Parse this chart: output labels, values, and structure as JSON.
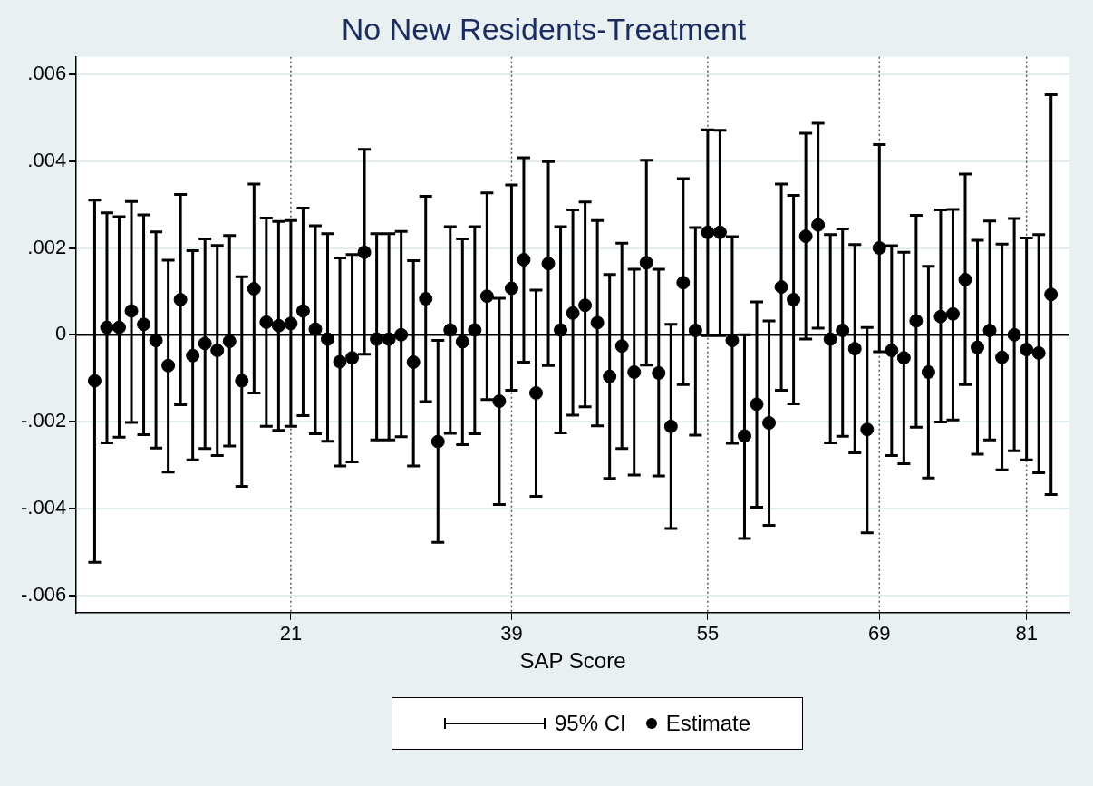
{
  "chart_data": {
    "type": "scatter",
    "title": "No New Residents-Treatment",
    "xlabel": "SAP Score",
    "x": [
      5,
      6,
      7,
      8,
      9,
      10,
      11,
      12,
      13,
      14,
      15,
      16,
      17,
      18,
      19,
      20,
      21,
      22,
      23,
      24,
      25,
      26,
      27,
      28,
      29,
      30,
      31,
      32,
      33,
      34,
      35,
      36,
      37,
      38,
      39,
      40,
      41,
      42,
      43,
      44,
      45,
      46,
      47,
      48,
      49,
      50,
      51,
      52,
      53,
      54,
      55,
      56,
      57,
      58,
      59,
      60,
      61,
      62,
      63,
      64,
      65,
      66,
      67,
      68,
      69,
      70,
      71,
      72,
      73,
      74,
      75,
      76,
      77,
      78,
      79,
      80,
      81,
      82,
      83
    ],
    "series": [
      {
        "name": "Estimate",
        "color": "#000000",
        "marker": "circle",
        "values": [
          -0.00106,
          0.00017,
          0.00017,
          0.00055,
          0.00024,
          -0.00013,
          -0.00071,
          0.00081,
          -0.00048,
          -0.0002,
          -0.00036,
          -0.00015,
          -0.00106,
          0.00106,
          0.00029,
          0.00021,
          0.00026,
          0.00055,
          0.00013,
          -0.0001,
          -0.00062,
          -0.00053,
          0.0019,
          -0.0001,
          -0.0001,
          0,
          -0.00063,
          0.00083,
          -0.00246,
          0.00011,
          -0.00016,
          0.00011,
          0.00089,
          -0.00153,
          0.00107,
          0.00173,
          -0.00134,
          0.00164,
          0.00011,
          0.0005,
          0.00068,
          0.00028,
          -0.00096,
          -0.00026,
          -0.00086,
          0.00166,
          -0.00088,
          -0.00211,
          0.0012,
          0.0001,
          0.00236,
          0.00236,
          -0.00013,
          -0.00233,
          -0.0016,
          -0.00203,
          0.0011,
          0.00081,
          0.00227,
          0.00253,
          -0.0001,
          0.0001,
          -0.00032,
          -0.00218,
          0.002,
          -0.00036,
          -0.00053,
          0.00032,
          -0.00086,
          0.00042,
          0.00048,
          0.00127,
          -0.00029,
          0.0001,
          -0.00052,
          0,
          -0.00034,
          -0.00042,
          0.00093
        ],
        "errors": [
          [
            -0.00524,
            0.0031
          ],
          [
            -0.00249,
            0.00281
          ],
          [
            -0.00236,
            0.00272
          ],
          [
            -0.00202,
            0.00307
          ],
          [
            -0.0023,
            0.00276
          ],
          [
            -0.00261,
            0.00237
          ],
          [
            -0.00316,
            0.00172
          ],
          [
            -0.00161,
            0.00323
          ],
          [
            -0.00288,
            0.00194
          ],
          [
            -0.00262,
            0.00221
          ],
          [
            -0.00278,
            0.00206
          ],
          [
            -0.00256,
            0.00229
          ],
          [
            -0.00349,
            0.00134
          ],
          [
            -0.00134,
            0.00347
          ],
          [
            -0.00211,
            0.00269
          ],
          [
            -0.0022,
            0.00261
          ],
          [
            -0.00211,
            0.00263
          ],
          [
            -0.00186,
            0.00292
          ],
          [
            -0.00228,
            0.00251
          ],
          [
            -0.00245,
            0.00233
          ],
          [
            -0.00302,
            0.00177
          ],
          [
            -0.00293,
            0.00185
          ],
          [
            -0.00045,
            0.00427
          ],
          [
            -0.00242,
            0.00233
          ],
          [
            -0.00242,
            0.00233
          ],
          [
            -0.00235,
            0.00238
          ],
          [
            -0.00302,
            0.00171
          ],
          [
            -0.00154,
            0.00319
          ],
          [
            -0.00478,
            -0.00013
          ],
          [
            -0.00227,
            0.00249
          ],
          [
            -0.00253,
            0.00221
          ],
          [
            -0.00228,
            0.00249
          ],
          [
            -0.00149,
            0.00327
          ],
          [
            -0.00391,
            0.00084
          ],
          [
            -0.00128,
            0.00345
          ],
          [
            -0.00063,
            0.00408
          ],
          [
            -0.00372,
            0.00103
          ],
          [
            -0.00071,
            0.00399
          ],
          [
            -0.00226,
            0.00249
          ],
          [
            -0.00185,
            0.00288
          ],
          [
            -0.00166,
            0.00306
          ],
          [
            -0.0021,
            0.00263
          ],
          [
            -0.00331,
            0.00139
          ],
          [
            -0.00262,
            0.00211
          ],
          [
            -0.00323,
            0.00151
          ],
          [
            -0.0007,
            0.00402
          ],
          [
            -0.00325,
            0.00151
          ],
          [
            -0.00446,
            0.00024
          ],
          [
            -0.00115,
            0.0036
          ],
          [
            -0.00231,
            0.00247
          ],
          [
            -2e-05,
            0.00472
          ],
          [
            -2e-05,
            0.00471
          ],
          [
            -0.0025,
            0.00226
          ],
          [
            -0.00469,
            0
          ],
          [
            -0.00397,
            0.00076
          ],
          [
            -0.00439,
            0.00032
          ],
          [
            -0.00128,
            0.00347
          ],
          [
            -0.00159,
            0.00321
          ],
          [
            -0.0001,
            0.00464
          ],
          [
            0.00015,
            0.00487
          ],
          [
            -0.00249,
            0.00231
          ],
          [
            -0.00234,
            0.00244
          ],
          [
            -0.00272,
            0.00208
          ],
          [
            -0.00456,
            0.00017
          ],
          [
            -0.00039,
            0.00438
          ],
          [
            -0.00278,
            0.00205
          ],
          [
            -0.00297,
            0.0019
          ],
          [
            -0.00213,
            0.00275
          ],
          [
            -0.0033,
            0.00158
          ],
          [
            -0.00201,
            0.00288
          ],
          [
            -0.00196,
            0.00289
          ],
          [
            -0.00115,
            0.0037
          ],
          [
            -0.00275,
            0.00218
          ],
          [
            -0.00242,
            0.00262
          ],
          [
            -0.00311,
            0.00209
          ],
          [
            -0.00267,
            0.00268
          ],
          [
            -0.00288,
            0.00223
          ],
          [
            -0.00318,
            0.00231
          ],
          [
            -0.00368,
            0.00553
          ]
        ]
      }
    ],
    "annotations": [
      "95% CI"
    ],
    "xlim": [
      3.5,
      84.5
    ],
    "xticks": [
      21,
      39,
      55,
      69,
      81
    ],
    "ylim": [
      -0.0064,
      0.0064
    ],
    "yticks": [
      {
        "value": -0.006,
        "label": "-.006"
      },
      {
        "value": -0.004,
        "label": "-.004"
      },
      {
        "value": -0.002,
        "label": "-.002"
      },
      0,
      {
        "value": 0.002,
        "label": ".002"
      },
      {
        "value": 0.004,
        "label": ".004"
      },
      {
        "value": 0.006,
        "label": ".006"
      }
    ],
    "grid": "y",
    "legend": "bottom",
    "ref_lines": [
      {
        "axis": "y",
        "value": 0,
        "color": "#000000",
        "line_style": "solid"
      },
      {
        "axis": "x",
        "value": 21,
        "color": "#555555",
        "line_style": "dotted"
      },
      {
        "axis": "x",
        "value": 39,
        "color": "#555555",
        "line_style": "dotted"
      },
      {
        "axis": "x",
        "value": 55,
        "color": "#555555",
        "line_style": "dotted"
      },
      {
        "axis": "x",
        "value": 69,
        "color": "#555555",
        "line_style": "dotted"
      },
      {
        "axis": "x",
        "value": 81,
        "color": "#555555",
        "line_style": "dotted"
      }
    ]
  }
}
